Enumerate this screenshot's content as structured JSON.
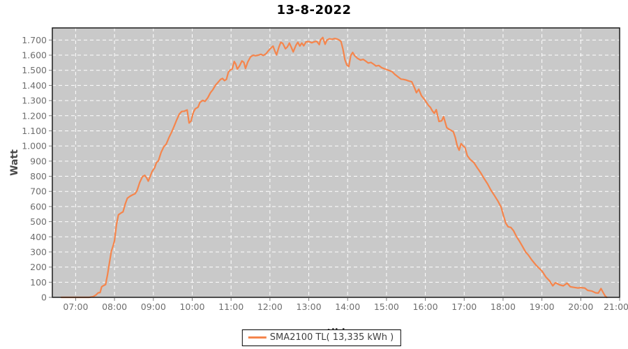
{
  "chart_data": {
    "type": "line",
    "title": "13-8-2022",
    "xlabel": "tijd",
    "ylabel": "Watt",
    "x_range_hours": [
      6.4,
      21.0
    ],
    "ylim": [
      0,
      1780
    ],
    "grid": {
      "visible": true,
      "style": "dashed",
      "color": "#ffffff"
    },
    "colors": {
      "line": "#f5854c",
      "plot_bg": "#c9c9c9",
      "grid": "#ffffff",
      "border": "#1a1a1a",
      "tick_text": "#6e6e6e",
      "tick_mark": "#7a7a7a"
    },
    "x_ticks": {
      "values": [
        7,
        8,
        9,
        10,
        11,
        12,
        13,
        14,
        15,
        16,
        17,
        18,
        19,
        20,
        21
      ],
      "labels": [
        "07:00",
        "08:00",
        "09:00",
        "10:00",
        "11:00",
        "12:00",
        "13:00",
        "14:00",
        "15:00",
        "16:00",
        "17:00",
        "18:00",
        "19:00",
        "20:00",
        "21:00"
      ]
    },
    "y_ticks": {
      "values": [
        0,
        100,
        200,
        300,
        400,
        500,
        600,
        700,
        800,
        900,
        1000,
        1100,
        1200,
        1300,
        1400,
        1500,
        1600,
        1700
      ],
      "labels": [
        "0",
        "100",
        "200",
        "300",
        "400",
        "500",
        "600",
        "700",
        "800",
        "900",
        "1.000",
        "1.100",
        "1.200",
        "1.300",
        "1.400",
        "1.500",
        "1.600",
        "1.700"
      ]
    },
    "legend": {
      "position": "bottom-center",
      "entries": [
        {
          "label": "SMA2100 TL( 13,335 kWh )",
          "color": "#f5854c"
        }
      ]
    },
    "series": [
      {
        "name": "SMA2100 TL( 13,335 kWh )",
        "color": "#f5854c",
        "points": [
          [
            6.63,
            0
          ],
          [
            6.8,
            0
          ],
          [
            7.0,
            0
          ],
          [
            7.2,
            0
          ],
          [
            7.35,
            0
          ],
          [
            7.45,
            5
          ],
          [
            7.52,
            15
          ],
          [
            7.58,
            30
          ],
          [
            7.63,
            32
          ],
          [
            7.67,
            70
          ],
          [
            7.72,
            78
          ],
          [
            7.77,
            85
          ],
          [
            7.82,
            150
          ],
          [
            7.87,
            230
          ],
          [
            7.92,
            305
          ],
          [
            7.97,
            345
          ],
          [
            8.0,
            375
          ],
          [
            8.05,
            480
          ],
          [
            8.1,
            545
          ],
          [
            8.17,
            558
          ],
          [
            8.22,
            565
          ],
          [
            8.28,
            620
          ],
          [
            8.33,
            655
          ],
          [
            8.4,
            668
          ],
          [
            8.47,
            678
          ],
          [
            8.53,
            685
          ],
          [
            8.58,
            705
          ],
          [
            8.65,
            760
          ],
          [
            8.72,
            798
          ],
          [
            8.78,
            806
          ],
          [
            8.83,
            788
          ],
          [
            8.87,
            768
          ],
          [
            8.92,
            800
          ],
          [
            8.97,
            833
          ],
          [
            9.03,
            855
          ],
          [
            9.08,
            890
          ],
          [
            9.13,
            902
          ],
          [
            9.2,
            958
          ],
          [
            9.27,
            995
          ],
          [
            9.33,
            1012
          ],
          [
            9.4,
            1055
          ],
          [
            9.47,
            1092
          ],
          [
            9.53,
            1128
          ],
          [
            9.6,
            1172
          ],
          [
            9.67,
            1212
          ],
          [
            9.73,
            1228
          ],
          [
            9.8,
            1230
          ],
          [
            9.87,
            1238
          ],
          [
            9.92,
            1152
          ],
          [
            9.97,
            1165
          ],
          [
            10.03,
            1222
          ],
          [
            10.08,
            1246
          ],
          [
            10.15,
            1256
          ],
          [
            10.2,
            1288
          ],
          [
            10.27,
            1302
          ],
          [
            10.33,
            1295
          ],
          [
            10.4,
            1318
          ],
          [
            10.47,
            1352
          ],
          [
            10.53,
            1372
          ],
          [
            10.6,
            1402
          ],
          [
            10.67,
            1422
          ],
          [
            10.73,
            1440
          ],
          [
            10.78,
            1446
          ],
          [
            10.83,
            1432
          ],
          [
            10.88,
            1440
          ],
          [
            10.93,
            1488
          ],
          [
            10.98,
            1502
          ],
          [
            11.03,
            1508
          ],
          [
            11.08,
            1558
          ],
          [
            11.12,
            1542
          ],
          [
            11.16,
            1508
          ],
          [
            11.22,
            1530
          ],
          [
            11.28,
            1562
          ],
          [
            11.33,
            1552
          ],
          [
            11.37,
            1512
          ],
          [
            11.43,
            1555
          ],
          [
            11.5,
            1588
          ],
          [
            11.57,
            1600
          ],
          [
            11.63,
            1596
          ],
          [
            11.7,
            1600
          ],
          [
            11.77,
            1606
          ],
          [
            11.83,
            1598
          ],
          [
            11.9,
            1610
          ],
          [
            11.97,
            1632
          ],
          [
            12.03,
            1648
          ],
          [
            12.08,
            1660
          ],
          [
            12.13,
            1625
          ],
          [
            12.17,
            1602
          ],
          [
            12.23,
            1652
          ],
          [
            12.28,
            1685
          ],
          [
            12.33,
            1678
          ],
          [
            12.4,
            1642
          ],
          [
            12.45,
            1655
          ],
          [
            12.5,
            1680
          ],
          [
            12.55,
            1652
          ],
          [
            12.6,
            1622
          ],
          [
            12.67,
            1665
          ],
          [
            12.72,
            1685
          ],
          [
            12.77,
            1660
          ],
          [
            12.82,
            1680
          ],
          [
            12.87,
            1662
          ],
          [
            12.93,
            1688
          ],
          [
            13.0,
            1690
          ],
          [
            13.08,
            1682
          ],
          [
            13.13,
            1688
          ],
          [
            13.2,
            1692
          ],
          [
            13.27,
            1670
          ],
          [
            13.3,
            1700
          ],
          [
            13.36,
            1717
          ],
          [
            13.42,
            1672
          ],
          [
            13.47,
            1700
          ],
          [
            13.53,
            1708
          ],
          [
            13.6,
            1705
          ],
          [
            13.67,
            1710
          ],
          [
            13.73,
            1706
          ],
          [
            13.78,
            1700
          ],
          [
            13.83,
            1690
          ],
          [
            13.88,
            1640
          ],
          [
            13.93,
            1570
          ],
          [
            13.98,
            1535
          ],
          [
            14.03,
            1525
          ],
          [
            14.08,
            1598
          ],
          [
            14.13,
            1618
          ],
          [
            14.18,
            1597
          ],
          [
            14.25,
            1580
          ],
          [
            14.33,
            1568
          ],
          [
            14.4,
            1572
          ],
          [
            14.47,
            1560
          ],
          [
            14.53,
            1548
          ],
          [
            14.6,
            1552
          ],
          [
            14.67,
            1540
          ],
          [
            14.73,
            1528
          ],
          [
            14.8,
            1532
          ],
          [
            14.87,
            1518
          ],
          [
            14.93,
            1512
          ],
          [
            15.0,
            1505
          ],
          [
            15.08,
            1498
          ],
          [
            15.15,
            1490
          ],
          [
            15.22,
            1472
          ],
          [
            15.3,
            1456
          ],
          [
            15.37,
            1442
          ],
          [
            15.43,
            1440
          ],
          [
            15.5,
            1436
          ],
          [
            15.57,
            1430
          ],
          [
            15.65,
            1424
          ],
          [
            15.72,
            1385
          ],
          [
            15.77,
            1352
          ],
          [
            15.83,
            1375
          ],
          [
            15.9,
            1332
          ],
          [
            15.97,
            1310
          ],
          [
            16.03,
            1288
          ],
          [
            16.08,
            1268
          ],
          [
            16.13,
            1255
          ],
          [
            16.18,
            1232
          ],
          [
            16.23,
            1216
          ],
          [
            16.28,
            1240
          ],
          [
            16.35,
            1162
          ],
          [
            16.42,
            1166
          ],
          [
            16.47,
            1194
          ],
          [
            16.55,
            1122
          ],
          [
            16.6,
            1112
          ],
          [
            16.67,
            1102
          ],
          [
            16.72,
            1094
          ],
          [
            16.77,
            1056
          ],
          [
            16.82,
            1002
          ],
          [
            16.87,
            972
          ],
          [
            16.92,
            1016
          ],
          [
            16.97,
            1000
          ],
          [
            17.02,
            990
          ],
          [
            17.08,
            936
          ],
          [
            17.15,
            912
          ],
          [
            17.25,
            890
          ],
          [
            17.33,
            858
          ],
          [
            17.42,
            825
          ],
          [
            17.5,
            790
          ],
          [
            17.6,
            750
          ],
          [
            17.68,
            712
          ],
          [
            17.78,
            672
          ],
          [
            17.87,
            635
          ],
          [
            17.95,
            596
          ],
          [
            18.0,
            550
          ],
          [
            18.07,
            490
          ],
          [
            18.13,
            466
          ],
          [
            18.2,
            462
          ],
          [
            18.27,
            440
          ],
          [
            18.35,
            400
          ],
          [
            18.42,
            372
          ],
          [
            18.5,
            336
          ],
          [
            18.58,
            300
          ],
          [
            18.65,
            280
          ],
          [
            18.73,
            250
          ],
          [
            18.85,
            212
          ],
          [
            19.0,
            175
          ],
          [
            19.1,
            135
          ],
          [
            19.2,
            108
          ],
          [
            19.28,
            76
          ],
          [
            19.35,
            97
          ],
          [
            19.45,
            83
          ],
          [
            19.55,
            76
          ],
          [
            19.65,
            94
          ],
          [
            19.73,
            70
          ],
          [
            19.82,
            66
          ],
          [
            19.92,
            62
          ],
          [
            20.0,
            64
          ],
          [
            20.1,
            62
          ],
          [
            20.18,
            46
          ],
          [
            20.28,
            42
          ],
          [
            20.38,
            30
          ],
          [
            20.45,
            28
          ],
          [
            20.52,
            58
          ],
          [
            20.58,
            30
          ],
          [
            20.63,
            8
          ],
          [
            20.67,
            0
          ]
        ]
      }
    ]
  }
}
